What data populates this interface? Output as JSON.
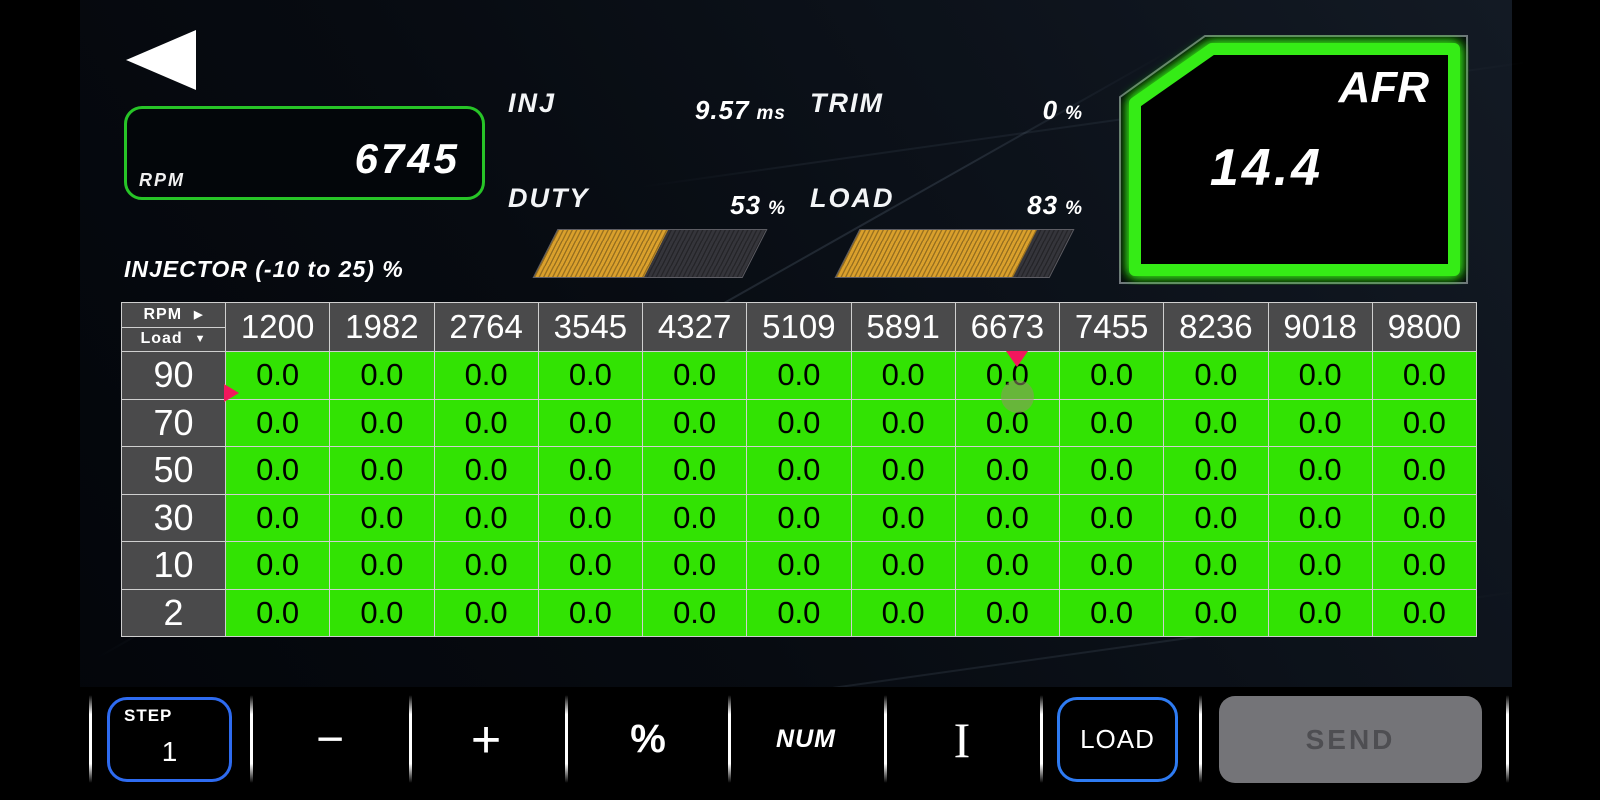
{
  "gauges": {
    "rpm": {
      "label": "RPM",
      "value": "6745"
    },
    "inj": {
      "label": "INJ",
      "value": "9.57",
      "unit": "ms"
    },
    "trim": {
      "label": "TRIM",
      "value": "0",
      "unit": "%"
    },
    "duty": {
      "label": "DUTY",
      "value": "53",
      "unit": "%",
      "pct": 53
    },
    "load": {
      "label": "LOAD",
      "value": "83",
      "unit": "%",
      "pct": 83
    },
    "afr": {
      "label": "AFR",
      "value": "14.4"
    }
  },
  "map": {
    "title": "INJECTOR (-10 to 25) %",
    "corner_top": "RPM",
    "corner_bottom": "Load",
    "rpm_columns": [
      "1200",
      "1982",
      "2764",
      "3545",
      "4327",
      "5109",
      "5891",
      "6673",
      "7455",
      "8236",
      "9018",
      "9800"
    ],
    "load_rows": [
      "90",
      "70",
      "50",
      "30",
      "10",
      "2"
    ],
    "values": [
      [
        "0.0",
        "0.0",
        "0.0",
        "0.0",
        "0.0",
        "0.0",
        "0.0",
        "0.0",
        "0.0",
        "0.0",
        "0.0",
        "0.0"
      ],
      [
        "0.0",
        "0.0",
        "0.0",
        "0.0",
        "0.0",
        "0.0",
        "0.0",
        "0.0",
        "0.0",
        "0.0",
        "0.0",
        "0.0"
      ],
      [
        "0.0",
        "0.0",
        "0.0",
        "0.0",
        "0.0",
        "0.0",
        "0.0",
        "0.0",
        "0.0",
        "0.0",
        "0.0",
        "0.0"
      ],
      [
        "0.0",
        "0.0",
        "0.0",
        "0.0",
        "0.0",
        "0.0",
        "0.0",
        "0.0",
        "0.0",
        "0.0",
        "0.0",
        "0.0"
      ],
      [
        "0.0",
        "0.0",
        "0.0",
        "0.0",
        "0.0",
        "0.0",
        "0.0",
        "0.0",
        "0.0",
        "0.0",
        "0.0",
        "0.0"
      ],
      [
        "0.0",
        "0.0",
        "0.0",
        "0.0",
        "0.0",
        "0.0",
        "0.0",
        "0.0",
        "0.0",
        "0.0",
        "0.0",
        "0.0"
      ]
    ]
  },
  "toolbar": {
    "step_label": "STEP",
    "step_value": "1",
    "minus": "−",
    "plus": "+",
    "percent": "%",
    "num": "NUM",
    "cursor": "I",
    "load": "LOAD",
    "send": "SEND"
  },
  "colors": {
    "cell_green": "#32e303",
    "marker_pink": "#f2175d",
    "accent_blue": "#2e6bf0",
    "bar_orange": "#daa02c",
    "afr_green": "#36ec18",
    "header_gray": "#4a4a4b"
  }
}
